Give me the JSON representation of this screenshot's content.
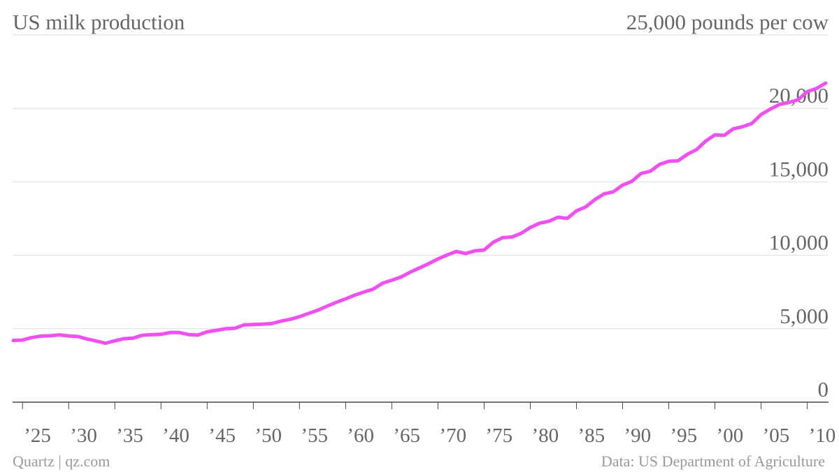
{
  "chart_data": {
    "type": "line",
    "title": "US milk production",
    "source": "Quartz | qz.com",
    "credit": "Data: US Department of Agriculture",
    "x": [
      1924,
      1925,
      1926,
      1927,
      1928,
      1929,
      1930,
      1931,
      1932,
      1933,
      1934,
      1935,
      1936,
      1937,
      1938,
      1939,
      1940,
      1941,
      1942,
      1943,
      1944,
      1945,
      1946,
      1947,
      1948,
      1949,
      1950,
      1951,
      1952,
      1953,
      1954,
      1955,
      1956,
      1957,
      1958,
      1959,
      1960,
      1961,
      1962,
      1963,
      1964,
      1965,
      1966,
      1967,
      1968,
      1969,
      1970,
      1971,
      1972,
      1973,
      1974,
      1975,
      1976,
      1977,
      1978,
      1979,
      1980,
      1981,
      1982,
      1983,
      1984,
      1985,
      1986,
      1987,
      1988,
      1989,
      1990,
      1991,
      1992,
      1993,
      1994,
      1995,
      1996,
      1997,
      1998,
      1999,
      2000,
      2001,
      2002,
      2003,
      2004,
      2005,
      2006,
      2007,
      2008,
      2009,
      2010,
      2011,
      2012
    ],
    "series": [
      {
        "color": "#f050f0",
        "values": [
          4200,
          4230,
          4400,
          4500,
          4520,
          4580,
          4510,
          4470,
          4300,
          4160,
          4010,
          4180,
          4320,
          4360,
          4560,
          4590,
          4620,
          4740,
          4740,
          4600,
          4570,
          4790,
          4890,
          5000,
          5030,
          5260,
          5290,
          5310,
          5350,
          5520,
          5640,
          5820,
          6040,
          6260,
          6540,
          6800,
          7030,
          7290,
          7500,
          7700,
          8100,
          8300,
          8520,
          8850,
          9140,
          9430,
          9750,
          10020,
          10260,
          10120,
          10300,
          10360,
          10890,
          11200,
          11240,
          11490,
          11890,
          12180,
          12310,
          12590,
          12510,
          13020,
          13290,
          13790,
          14180,
          14320,
          14780,
          15030,
          15570,
          15720,
          16180,
          16400,
          16430,
          16870,
          17190,
          17770,
          18200,
          18160,
          18610,
          18750,
          18970,
          19580,
          19950,
          20270,
          20400,
          20580,
          21140,
          21350,
          21720
        ]
      }
    ],
    "xlim": [
      1924,
      2012
    ],
    "xticks": [
      {
        "value": 1925,
        "label": "’25"
      },
      {
        "value": 1930,
        "label": "’30"
      },
      {
        "value": 1935,
        "label": "’35"
      },
      {
        "value": 1940,
        "label": "’40"
      },
      {
        "value": 1945,
        "label": "’45"
      },
      {
        "value": 1950,
        "label": "’50"
      },
      {
        "value": 1955,
        "label": "’55"
      },
      {
        "value": 1960,
        "label": "’60"
      },
      {
        "value": 1965,
        "label": "’65"
      },
      {
        "value": 1970,
        "label": "’70"
      },
      {
        "value": 1975,
        "label": "’75"
      },
      {
        "value": 1980,
        "label": "’80"
      },
      {
        "value": 1985,
        "label": "’85"
      },
      {
        "value": 1990,
        "label": "’90"
      },
      {
        "value": 1995,
        "label": "’95"
      },
      {
        "value": 2000,
        "label": "’00"
      },
      {
        "value": 2005,
        "label": "’05"
      },
      {
        "value": 2010,
        "label": "’10"
      }
    ],
    "ylim": [
      0,
      25000
    ],
    "yticks": [
      0,
      {
        "value": 5000,
        "label": "5,000"
      },
      {
        "value": 10000,
        "label": "10,000"
      },
      {
        "value": 15000,
        "label": "15,000"
      },
      {
        "value": 20000,
        "label": "20,000"
      },
      {
        "value": 25000,
        "label": "25,000 pounds per cow"
      }
    ],
    "grid": true
  }
}
